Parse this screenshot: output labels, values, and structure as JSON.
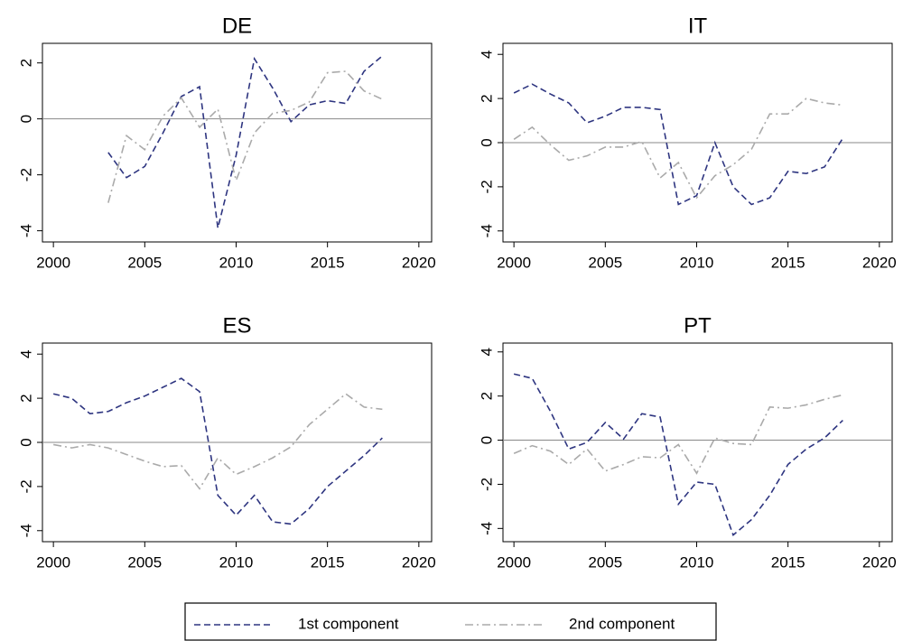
{
  "chart_data": [
    {
      "type": "line",
      "title": "DE",
      "x": [
        2003,
        2004,
        2005,
        2006,
        2007,
        2008,
        2009,
        2010,
        2011,
        2012,
        2013,
        2014,
        2015,
        2016,
        2017,
        2018
      ],
      "series": [
        {
          "name": "1st component",
          "color": "#2e3580",
          "values": [
            -1.2,
            -2.1,
            -1.7,
            -0.5,
            0.8,
            1.15,
            -3.9,
            -1.3,
            2.15,
            1.1,
            -0.1,
            0.5,
            0.65,
            0.55,
            1.7,
            2.25
          ]
        },
        {
          "name": "2nd component",
          "color": "#aaaaaa",
          "values": [
            -3.0,
            -0.6,
            -1.1,
            0.1,
            0.75,
            -0.3,
            0.35,
            -2.2,
            -0.5,
            0.2,
            0.3,
            0.6,
            1.65,
            1.7,
            1.0,
            0.7
          ]
        }
      ],
      "xlim": [
        1999.4,
        2020.7
      ],
      "xticks": [
        2000,
        2005,
        2010,
        2015,
        2020
      ],
      "ylim": [
        -4.4,
        2.7
      ],
      "yticks": [
        -4,
        -2,
        0,
        2
      ],
      "refline": 0
    },
    {
      "type": "line",
      "title": "IT",
      "x": [
        2000,
        2001,
        2002,
        2003,
        2004,
        2005,
        2006,
        2007,
        2008,
        2009,
        2010,
        2011,
        2012,
        2013,
        2014,
        2015,
        2016,
        2017,
        2018
      ],
      "series": [
        {
          "name": "1st component",
          "color": "#2e3580",
          "values": [
            2.25,
            2.65,
            2.2,
            1.8,
            0.9,
            1.2,
            1.6,
            1.6,
            1.5,
            -2.8,
            -2.4,
            0.0,
            -2.0,
            -2.8,
            -2.5,
            -1.3,
            -1.4,
            -1.1,
            0.2
          ]
        },
        {
          "name": "2nd component",
          "color": "#aaaaaa",
          "values": [
            0.15,
            0.7,
            -0.1,
            -0.8,
            -0.6,
            -0.2,
            -0.2,
            0.05,
            -1.6,
            -0.9,
            -2.5,
            -1.5,
            -1.0,
            -0.3,
            1.3,
            1.3,
            2.0,
            1.8,
            1.7
          ]
        }
      ],
      "xlim": [
        1999.4,
        2020.7
      ],
      "xticks": [
        2000,
        2005,
        2010,
        2015,
        2020
      ],
      "ylim": [
        -4.5,
        4.5
      ],
      "yticks": [
        -4,
        -2,
        0,
        2,
        4
      ],
      "refline": 0
    },
    {
      "type": "line",
      "title": "ES",
      "x": [
        2000,
        2001,
        2002,
        2003,
        2004,
        2005,
        2006,
        2007,
        2008,
        2009,
        2010,
        2011,
        2012,
        2013,
        2014,
        2015,
        2016,
        2017,
        2018
      ],
      "series": [
        {
          "name": "1st component",
          "color": "#2e3580",
          "values": [
            2.2,
            2.0,
            1.3,
            1.4,
            1.8,
            2.1,
            2.5,
            2.9,
            2.3,
            -2.4,
            -3.3,
            -2.4,
            -3.6,
            -3.7,
            -3.0,
            -2.0,
            -1.3,
            -0.6,
            0.2
          ]
        },
        {
          "name": "2nd component",
          "color": "#aaaaaa",
          "values": [
            -0.1,
            -0.25,
            -0.1,
            -0.25,
            -0.55,
            -0.85,
            -1.1,
            -1.05,
            -2.1,
            -0.7,
            -1.45,
            -1.1,
            -0.7,
            -0.2,
            0.8,
            1.5,
            2.2,
            1.6,
            1.5
          ]
        }
      ],
      "xlim": [
        1999.4,
        2020.7
      ],
      "xticks": [
        2000,
        2005,
        2010,
        2015,
        2020
      ],
      "ylim": [
        -4.5,
        4.5
      ],
      "yticks": [
        -4,
        -2,
        0,
        2,
        4
      ],
      "refline": 0
    },
    {
      "type": "line",
      "title": "PT",
      "x": [
        2000,
        2001,
        2002,
        2003,
        2004,
        2005,
        2006,
        2007,
        2008,
        2009,
        2010,
        2011,
        2012,
        2013,
        2014,
        2015,
        2016,
        2017,
        2018
      ],
      "series": [
        {
          "name": "1st component",
          "color": "#2e3580",
          "values": [
            3.0,
            2.8,
            1.3,
            -0.4,
            -0.1,
            0.8,
            0.05,
            1.2,
            1.05,
            -2.9,
            -1.9,
            -2.0,
            -4.3,
            -3.6,
            -2.5,
            -1.1,
            -0.4,
            0.1,
            0.9
          ]
        },
        {
          "name": "2nd component",
          "color": "#aaaaaa",
          "values": [
            -0.6,
            -0.25,
            -0.5,
            -1.1,
            -0.4,
            -1.4,
            -1.1,
            -0.75,
            -0.8,
            -0.2,
            -1.5,
            0.1,
            -0.15,
            -0.2,
            1.5,
            1.45,
            1.6,
            1.85,
            2.05
          ]
        }
      ],
      "xlim": [
        1999.4,
        2020.7
      ],
      "xticks": [
        2000,
        2005,
        2010,
        2015,
        2020
      ],
      "ylim": [
        -4.6,
        4.4
      ],
      "yticks": [
        -4,
        -2,
        0,
        2,
        4
      ],
      "refline": 0
    }
  ]
}
